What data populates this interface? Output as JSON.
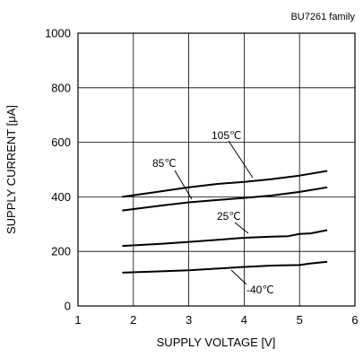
{
  "chart_data": {
    "type": "line",
    "note": "BU7261 family",
    "xlabel": "SUPPLY VOLTAGE [V]",
    "ylabel": "SUPPLY CURRENT [μA]",
    "xlim": [
      1,
      6
    ],
    "ylim": [
      0,
      1000
    ],
    "xticks": [
      "1",
      "2",
      "3",
      "4",
      "5",
      "6"
    ],
    "yticks": [
      "0",
      "200",
      "400",
      "600",
      "800",
      "1000"
    ],
    "grid": true,
    "line_color": "#000000",
    "series": [
      {
        "name": "105℃",
        "x": [
          1.8,
          2.5,
          3.0,
          3.5,
          4.0,
          4.5,
          5.0,
          5.5
        ],
        "y": [
          400,
          420,
          435,
          447,
          455,
          465,
          478,
          495
        ]
      },
      {
        "name": "85℃",
        "x": [
          1.8,
          2.5,
          3.0,
          3.5,
          4.0,
          4.5,
          5.0,
          5.5
        ],
        "y": [
          350,
          368,
          380,
          388,
          396,
          405,
          418,
          435
        ]
      },
      {
        "name": "25℃",
        "x": [
          1.8,
          2.5,
          3.0,
          3.5,
          4.0,
          4.5,
          4.8,
          5.0,
          5.2,
          5.5
        ],
        "y": [
          220,
          228,
          235,
          242,
          250,
          254,
          256,
          264,
          266,
          278
        ]
      },
      {
        "name": "-40℃",
        "x": [
          1.8,
          2.5,
          3.0,
          3.5,
          4.0,
          4.5,
          5.0,
          5.2,
          5.5
        ],
        "y": [
          122,
          127,
          131,
          137,
          143,
          148,
          150,
          156,
          162
        ]
      }
    ]
  }
}
